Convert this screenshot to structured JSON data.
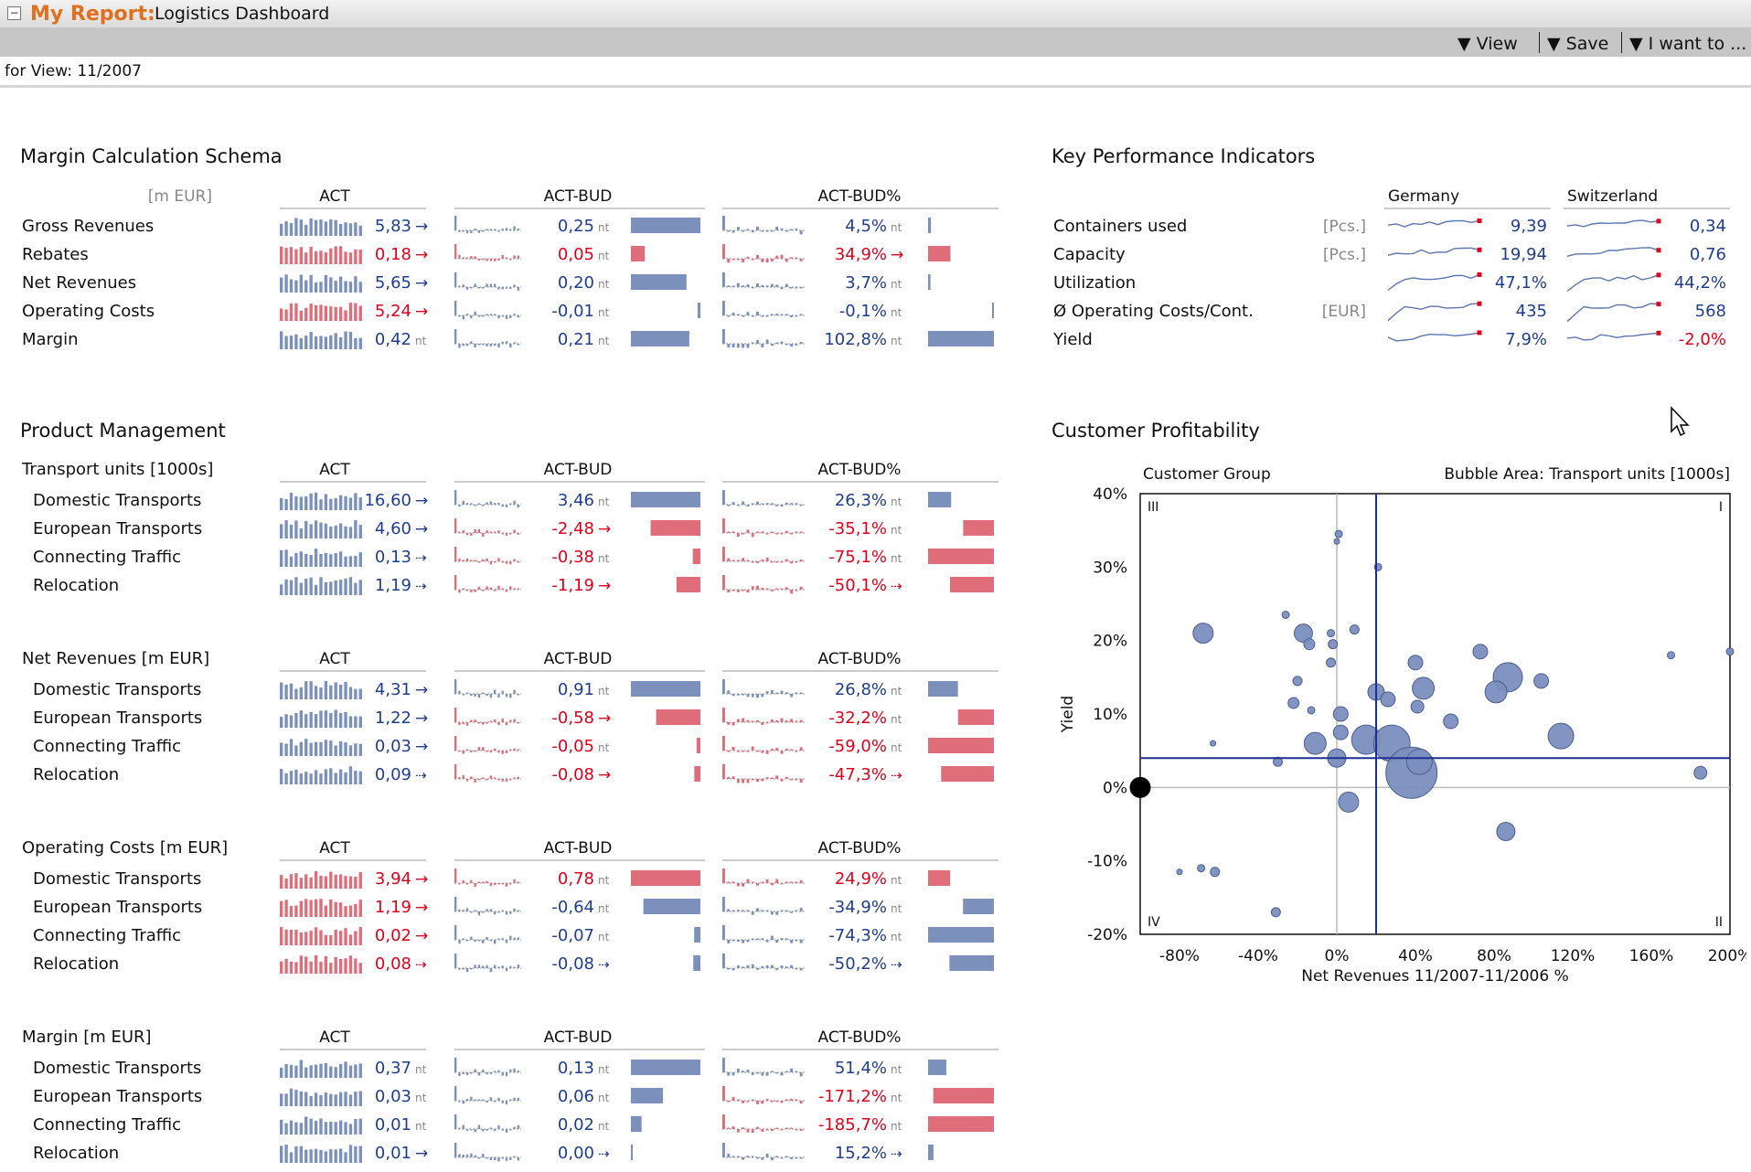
{
  "header": {
    "report_label": "My Report:",
    "report_name": "Logistics Dashboard"
  },
  "toolbar": {
    "view": "View",
    "save": "Save",
    "i_want_to": "I want to ..."
  },
  "view_bar": {
    "text": "for View: 11/2007"
  },
  "colors": {
    "blue": "#1f3e8f",
    "red": "#e0001b",
    "bar_blue": "#7b91bc",
    "bar_red": "#e06d7a"
  },
  "margin_schema": {
    "title": "Margin Calculation Schema",
    "unit": "[m EUR]",
    "col_headers": [
      "ACT",
      "ACT-BUD",
      "ACT-BUD%"
    ],
    "rows": [
      {
        "label": "Gross Revenues",
        "sign": 1,
        "act": "5,83",
        "act_trend": "up",
        "bud": "0,25",
        "bud_v": 0.25,
        "bud_suffix": "nt",
        "pct": "4,5%",
        "pct_v": 4.5,
        "pct_suffix": "nt"
      },
      {
        "label": "Rebates",
        "sign": -1,
        "act": "0,18",
        "act_trend": "up",
        "bud": "0,05",
        "bud_v": 0.05,
        "bud_suffix": "nt",
        "pct": "34,9%",
        "pct_v": 34.9,
        "pct_suffix": "arrow"
      },
      {
        "label": "Net Revenues",
        "sign": 1,
        "act": "5,65",
        "act_trend": "up",
        "bud": "0,20",
        "bud_v": 0.2,
        "bud_suffix": "nt",
        "pct": "3,7%",
        "pct_v": 3.7,
        "pct_suffix": "nt"
      },
      {
        "label": "Operating Costs",
        "sign": -1,
        "act": "5,24",
        "act_trend": "up",
        "bud": "-0,01",
        "bud_v": -0.01,
        "bud_suffix": "nt",
        "pct": "-0,1%",
        "pct_v": -0.1,
        "pct_suffix": "nt"
      },
      {
        "label": "Margin",
        "sign": 1,
        "act": "0,42",
        "act_trend": "nt",
        "bud": "0,21",
        "bud_v": 0.21,
        "bud_suffix": "nt",
        "pct": "102,8%",
        "pct_v": 102.8,
        "pct_suffix": "nt"
      }
    ]
  },
  "product_management": {
    "title": "Product Management",
    "blocks": [
      {
        "label": "Transport units [1000s]",
        "sign": 1,
        "rows": [
          {
            "label": "Domestic Transports",
            "act": "16,60",
            "act_trend": "up",
            "bud": "3,46",
            "bud_v": 3.46,
            "bud_suffix": "nt",
            "pct": "26,3%",
            "pct_v": 26.3,
            "pct_suffix": "nt"
          },
          {
            "label": "European Transports",
            "act": "4,60",
            "act_trend": "up",
            "bud": "-2,48",
            "bud_v": -2.48,
            "bud_suffix": "arrow",
            "pct": "-35,1%",
            "pct_v": -35.1,
            "pct_suffix": "nt"
          },
          {
            "label": "Connecting Traffic",
            "act": "0,13",
            "act_trend": "dash",
            "bud": "-0,38",
            "bud_v": -0.38,
            "bud_suffix": "nt",
            "pct": "-75,1%",
            "pct_v": -75.1,
            "pct_suffix": "nt"
          },
          {
            "label": "Relocation",
            "act": "1,19",
            "act_trend": "dash",
            "bud": "-1,19",
            "bud_v": -1.19,
            "bud_suffix": "arrow",
            "pct": "-50,1%",
            "pct_v": -50.1,
            "pct_suffix": "dash"
          }
        ]
      },
      {
        "label": "Net Revenues [m EUR]",
        "sign": 1,
        "rows": [
          {
            "label": "Domestic Transports",
            "act": "4,31",
            "act_trend": "up",
            "bud": "0,91",
            "bud_v": 0.91,
            "bud_suffix": "nt",
            "pct": "26,8%",
            "pct_v": 26.8,
            "pct_suffix": "nt"
          },
          {
            "label": "European Transports",
            "act": "1,22",
            "act_trend": "up",
            "bud": "-0,58",
            "bud_v": -0.58,
            "bud_suffix": "arrow",
            "pct": "-32,2%",
            "pct_v": -32.2,
            "pct_suffix": "nt"
          },
          {
            "label": "Connecting Traffic",
            "act": "0,03",
            "act_trend": "up",
            "bud": "-0,05",
            "bud_v": -0.05,
            "bud_suffix": "nt",
            "pct": "-59,0%",
            "pct_v": -59.0,
            "pct_suffix": "nt"
          },
          {
            "label": "Relocation",
            "act": "0,09",
            "act_trend": "dash",
            "bud": "-0,08",
            "bud_v": -0.08,
            "bud_suffix": "arrow",
            "pct": "-47,3%",
            "pct_v": -47.3,
            "pct_suffix": "dash"
          }
        ]
      },
      {
        "label": "Operating Costs [m EUR]",
        "sign": -1,
        "rows": [
          {
            "label": "Domestic Transports",
            "act": "3,94",
            "act_trend": "up",
            "bud": "0,78",
            "bud_v": 0.78,
            "bud_suffix": "nt",
            "pct": "24,9%",
            "pct_v": 24.9,
            "pct_suffix": "nt"
          },
          {
            "label": "European Transports",
            "act": "1,19",
            "act_trend": "up",
            "bud": "-0,64",
            "bud_v": -0.64,
            "bud_suffix": "nt",
            "pct": "-34,9%",
            "pct_v": -34.9,
            "pct_suffix": "nt"
          },
          {
            "label": "Connecting Traffic",
            "act": "0,02",
            "act_trend": "up",
            "bud": "-0,07",
            "bud_v": -0.07,
            "bud_suffix": "nt",
            "pct": "-74,3%",
            "pct_v": -74.3,
            "pct_suffix": "nt"
          },
          {
            "label": "Relocation",
            "act": "0,08",
            "act_trend": "dash",
            "bud": "-0,08",
            "bud_v": -0.08,
            "bud_suffix": "dash",
            "pct": "-50,2%",
            "pct_v": -50.2,
            "pct_suffix": "dash"
          }
        ]
      },
      {
        "label": "Margin [m EUR]",
        "sign": 1,
        "rows": [
          {
            "label": "Domestic Transports",
            "act": "0,37",
            "act_trend": "nt",
            "bud": "0,13",
            "bud_v": 0.13,
            "bud_suffix": "nt",
            "pct": "51,4%",
            "pct_v": 51.4,
            "pct_suffix": "nt"
          },
          {
            "label": "European Transports",
            "act": "0,03",
            "act_trend": "nt",
            "bud": "0,06",
            "bud_v": 0.06,
            "bud_suffix": "nt",
            "pct": "-171,2%",
            "pct_v": -171.2,
            "pct_suffix": "nt"
          },
          {
            "label": "Connecting Traffic",
            "act": "0,01",
            "act_trend": "nt",
            "bud": "0,02",
            "bud_v": 0.02,
            "bud_suffix": "nt",
            "pct": "-185,7%",
            "pct_v": -185.7,
            "pct_suffix": "nt"
          },
          {
            "label": "Relocation",
            "act": "0,01",
            "act_trend": "up",
            "bud": "0,00",
            "bud_v": 0.0,
            "bud_suffix": "dash",
            "pct": "15,2%",
            "pct_v": 15.2,
            "pct_suffix": "dash"
          }
        ]
      }
    ]
  },
  "kpi": {
    "title": "Key Performance Indicators",
    "countries": [
      "Germany",
      "Switzerland"
    ],
    "rows": [
      {
        "label": "Containers used",
        "unit": "[Pcs.]",
        "de": "9,39",
        "ch": "0,34",
        "de_neg": false,
        "ch_neg": false
      },
      {
        "label": "Capacity",
        "unit": "[Pcs.]",
        "de": "19,94",
        "ch": "0,76",
        "de_neg": false,
        "ch_neg": false
      },
      {
        "label": "Utilization",
        "unit": "",
        "de": "47,1%",
        "ch": "44,2%",
        "de_neg": false,
        "ch_neg": false
      },
      {
        "label": "Ø Operating Costs/Cont.",
        "unit": "[EUR]",
        "de": "435",
        "ch": "568",
        "de_neg": false,
        "ch_neg": false
      },
      {
        "label": "Yield",
        "unit": "",
        "de": "7,9%",
        "ch": "-2,0%",
        "de_neg": false,
        "ch_neg": true
      }
    ]
  },
  "customer_profitability": {
    "title": "Customer Profitability",
    "group_label": "Customer Group",
    "bubble_label": "Bubble Area:  Transport units [1000s]",
    "quadrants": [
      "I",
      "II",
      "III",
      "IV"
    ]
  },
  "chart_data": {
    "type": "scatter",
    "subtype": "bubble",
    "xlabel": "Net Revenues 11/2007-11/2006 %",
    "ylabel": "Yield",
    "xlim": [
      -100,
      200
    ],
    "ylim": [
      -20,
      40
    ],
    "x_ticks": [
      "-80%",
      "-40%",
      "0%",
      "40%",
      "80%",
      "120%",
      "160%",
      "200%"
    ],
    "x_tick_values": [
      -80,
      -40,
      0,
      40,
      80,
      120,
      160,
      200
    ],
    "y_ticks": [
      "40%",
      "30%",
      "20%",
      "10%",
      "0%",
      "-10%",
      "-20%"
    ],
    "y_tick_values": [
      40,
      30,
      20,
      10,
      0,
      -10,
      -20
    ],
    "reference_x": 20,
    "reference_y": 4,
    "points": [
      {
        "x": -68,
        "y": 21,
        "r": 11
      },
      {
        "x": 1,
        "y": 34.5,
        "r": 4
      },
      {
        "x": 0,
        "y": 33.5,
        "r": 3
      },
      {
        "x": 21,
        "y": 30,
        "r": 4
      },
      {
        "x": -26,
        "y": 23.5,
        "r": 4
      },
      {
        "x": -17,
        "y": 21,
        "r": 10
      },
      {
        "x": -14,
        "y": 19.5,
        "r": 6
      },
      {
        "x": -3,
        "y": 21,
        "r": 4
      },
      {
        "x": 9,
        "y": 21.5,
        "r": 5
      },
      {
        "x": -2,
        "y": 19.5,
        "r": 5
      },
      {
        "x": -3,
        "y": 17,
        "r": 5
      },
      {
        "x": 40,
        "y": 17,
        "r": 8
      },
      {
        "x": 73,
        "y": 18.5,
        "r": 8
      },
      {
        "x": 87,
        "y": 15,
        "r": 16
      },
      {
        "x": 104,
        "y": 14.5,
        "r": 8
      },
      {
        "x": -20,
        "y": 14.5,
        "r": 5
      },
      {
        "x": -22,
        "y": 11.5,
        "r": 6
      },
      {
        "x": -13,
        "y": 10.5,
        "r": 4
      },
      {
        "x": 20,
        "y": 13,
        "r": 9
      },
      {
        "x": 26,
        "y": 12,
        "r": 8
      },
      {
        "x": 44,
        "y": 13.5,
        "r": 12
      },
      {
        "x": 81,
        "y": 13,
        "r": 12
      },
      {
        "x": 41,
        "y": 11,
        "r": 7
      },
      {
        "x": 58,
        "y": 9,
        "r": 8
      },
      {
        "x": 2,
        "y": 10,
        "r": 8
      },
      {
        "x": 2,
        "y": 7.5,
        "r": 8
      },
      {
        "x": -11,
        "y": 6,
        "r": 12
      },
      {
        "x": 15,
        "y": 6.5,
        "r": 16
      },
      {
        "x": 28,
        "y": 6,
        "r": 20
      },
      {
        "x": 38,
        "y": 2,
        "r": 28
      },
      {
        "x": 42,
        "y": 3.5,
        "r": 14
      },
      {
        "x": 0,
        "y": 4,
        "r": 10
      },
      {
        "x": -30,
        "y": 3.5,
        "r": 5
      },
      {
        "x": -63,
        "y": 6,
        "r": 3
      },
      {
        "x": 114,
        "y": 7,
        "r": 14
      },
      {
        "x": 170,
        "y": 18,
        "r": 4
      },
      {
        "x": 200,
        "y": 18.5,
        "r": 4
      },
      {
        "x": 185,
        "y": 2,
        "r": 7
      },
      {
        "x": 6,
        "y": -2,
        "r": 11
      },
      {
        "x": 86,
        "y": -6,
        "r": 10
      },
      {
        "x": -80,
        "y": -11.5,
        "r": 3
      },
      {
        "x": -69,
        "y": -11,
        "r": 4
      },
      {
        "x": -62,
        "y": -11.5,
        "r": 5
      },
      {
        "x": -31,
        "y": -17,
        "r": 5
      },
      {
        "x": -100,
        "y": 0,
        "r": 11,
        "dark": true
      }
    ]
  }
}
